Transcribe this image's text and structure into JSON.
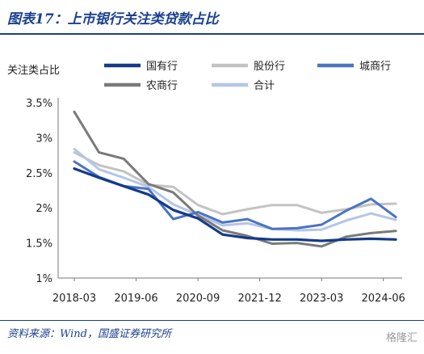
{
  "header": {
    "title": "图表17：上市银行关注类贷款占比"
  },
  "footer": {
    "source": "资料来源：Wind，国盛证券研究所",
    "watermark": "格隆汇"
  },
  "chart_data": {
    "type": "line",
    "title": "图表17：上市银行关注类贷款占比",
    "ylabel": "关注类占比",
    "xlabel": "",
    "ylim": [
      1,
      3.5
    ],
    "yticks": [
      1,
      1.5,
      2,
      2.5,
      3,
      3.5
    ],
    "ytick_labels": [
      "1%",
      "1.5%",
      "2%",
      "2.5%",
      "3%",
      "3.5%"
    ],
    "x": [
      "2018-03",
      "2018-09",
      "2019-03",
      "2019-09",
      "2020-03",
      "2020-09",
      "2021-03",
      "2021-09",
      "2022-03",
      "2022-09",
      "2023-03",
      "2023-09",
      "2024-03",
      "2024-09"
    ],
    "xtick_labels": [
      "2018-03",
      "2019-06",
      "2020-09",
      "2021-12",
      "2023-03",
      "2024-06"
    ],
    "xtick_positions": [
      "2018-03",
      "2019-06",
      "2020-09",
      "2021-12",
      "2023-03",
      "2024-06"
    ],
    "legend_position": "top",
    "grid": false,
    "series": [
      {
        "name": "国有行",
        "color": "#143b8a",
        "width": 3.2,
        "values": [
          2.56,
          2.43,
          2.31,
          2.19,
          1.97,
          1.85,
          1.62,
          1.57,
          1.55,
          1.55,
          1.53,
          1.55,
          1.56,
          1.55
        ]
      },
      {
        "name": "股份行",
        "color": "#c3c3c3",
        "width": 3.0,
        "values": [
          2.79,
          2.61,
          2.52,
          2.33,
          2.3,
          2.04,
          1.91,
          1.98,
          2.04,
          2.04,
          1.93,
          1.98,
          2.05,
          2.06
        ]
      },
      {
        "name": "城商行",
        "color": "#4a73c3",
        "width": 3.0,
        "values": [
          2.66,
          2.44,
          2.31,
          2.27,
          1.84,
          1.94,
          1.79,
          1.84,
          1.7,
          1.71,
          1.76,
          1.96,
          2.13,
          1.87
        ]
      },
      {
        "name": "农商行",
        "color": "#7a7a7a",
        "width": 3.0,
        "values": [
          3.37,
          2.79,
          2.7,
          2.34,
          2.22,
          1.89,
          1.68,
          1.6,
          1.49,
          1.5,
          1.45,
          1.59,
          1.64,
          1.67
        ]
      },
      {
        "name": "合计",
        "color": "#b4c6e7",
        "width": 3.0,
        "values": [
          2.84,
          2.55,
          2.43,
          2.3,
          2.05,
          1.9,
          1.75,
          1.78,
          1.7,
          1.68,
          1.69,
          1.82,
          1.92,
          1.83
        ]
      }
    ]
  }
}
